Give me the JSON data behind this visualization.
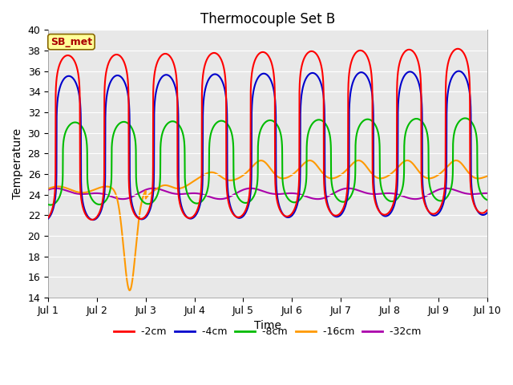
{
  "title": "Thermocouple Set B",
  "xlabel": "Time",
  "ylabel": "Temperature",
  "ylim": [
    14,
    40
  ],
  "yticks": [
    14,
    16,
    18,
    20,
    22,
    24,
    26,
    28,
    30,
    32,
    34,
    36,
    38,
    40
  ],
  "xtick_labels": [
    "Jul 1",
    "Jul 2",
    "Jul 3",
    "Jul 4",
    "Jul 5",
    "Jul 6",
    "Jul 7",
    "Jul 8",
    "Jul 9",
    "Jul 10"
  ],
  "series": {
    "-2cm": {
      "color": "#ff0000",
      "lw": 1.5
    },
    "-4cm": {
      "color": "#0000cc",
      "lw": 1.5
    },
    "-8cm": {
      "color": "#00bb00",
      "lw": 1.5
    },
    "-16cm": {
      "color": "#ff9900",
      "lw": 1.5
    },
    "-32cm": {
      "color": "#aa00aa",
      "lw": 1.5
    }
  },
  "annotation_text": "SB_met",
  "annotation_color": "#aa0000",
  "annotation_bg": "#ffff99",
  "annotation_border": "#886600",
  "plot_bg": "#e8e8e8",
  "fig_bg": "#ffffff",
  "title_fontsize": 12,
  "axis_label_fontsize": 10,
  "tick_fontsize": 9,
  "legend_fontsize": 9
}
